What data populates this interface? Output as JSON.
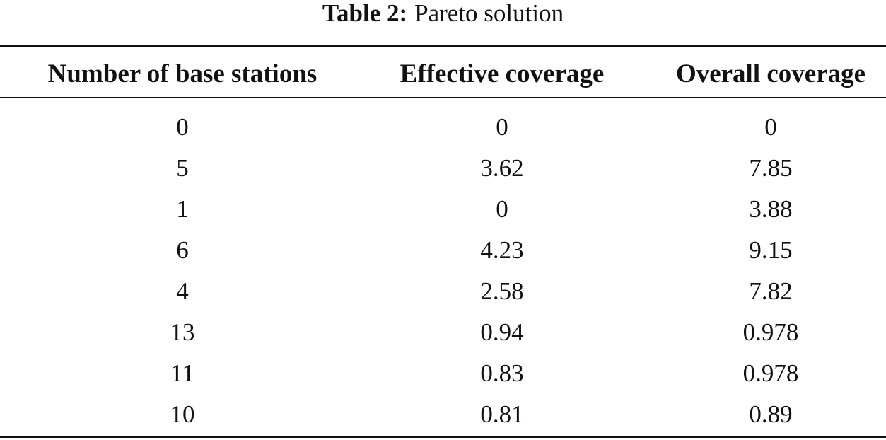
{
  "caption": {
    "label": "Table 2:",
    "title": "Pareto solution"
  },
  "table": {
    "headers": [
      "Number of base stations",
      "Effective coverage",
      "Overall coverage"
    ],
    "rows": [
      [
        "0",
        "0",
        "0"
      ],
      [
        "5",
        "3.62",
        "7.85"
      ],
      [
        "1",
        "0",
        "3.88"
      ],
      [
        "6",
        "4.23",
        "9.15"
      ],
      [
        "4",
        "2.58",
        "7.82"
      ],
      [
        "13",
        "0.94",
        "0.978"
      ],
      [
        "11",
        "0.83",
        "0.978"
      ],
      [
        "10",
        "0.81",
        "0.89"
      ]
    ]
  }
}
